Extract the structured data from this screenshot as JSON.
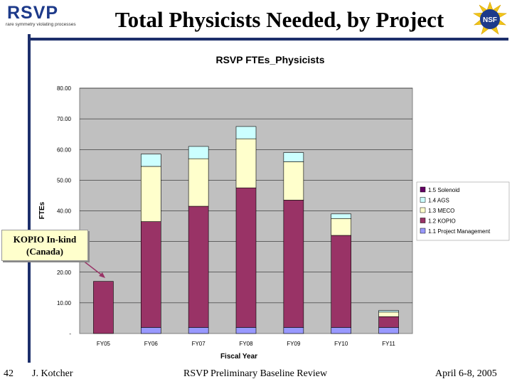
{
  "header": {
    "logo_text": "RSVP",
    "logo_tagline": "rare symmetry violating processes",
    "title": "Total Physicists Needed, by Project",
    "nsf_logo_text": "NSF"
  },
  "callout": {
    "line1": "KOPIO In-kind",
    "line2": "(Canada)"
  },
  "footer": {
    "page_number": "42",
    "author": "J. Kotcher",
    "event": "RSVP Preliminary Baseline Review",
    "date": "April 6-8, 2005"
  },
  "chart_data": {
    "type": "bar",
    "stacked": true,
    "title": "RSVP FTEs_Physicists",
    "xlabel": "Fiscal Year",
    "ylabel": "FTEs",
    "ylim": [
      0,
      80
    ],
    "yticks": [
      "-",
      "10.00",
      "20.00",
      "30.00",
      "40.00",
      "50.00",
      "60.00",
      "70.00",
      "80.00"
    ],
    "grid": true,
    "legend_position": "right",
    "categories": [
      "FY05",
      "FY06",
      "FY07",
      "FY08",
      "FY09",
      "FY10",
      "FY11"
    ],
    "series": [
      {
        "name": "1.1 Project Management",
        "color": "#9999ff",
        "values": [
          0,
          2,
          2,
          2,
          2,
          2,
          2
        ]
      },
      {
        "name": "1.2 KOPIO",
        "color": "#993366",
        "values": [
          17,
          34.5,
          39.5,
          45.5,
          41.5,
          30,
          3.5
        ]
      },
      {
        "name": "1.3 MECO",
        "color": "#ffffcc",
        "values": [
          0,
          18,
          15.5,
          16,
          12.5,
          5.5,
          1.5
        ]
      },
      {
        "name": "1.4 AGS",
        "color": "#ccffff",
        "values": [
          0,
          4,
          4,
          4,
          3,
          1.5,
          0.5
        ]
      },
      {
        "name": "1.5 Solenoid",
        "color": "#660066",
        "values": [
          0,
          0,
          0,
          0,
          0,
          0,
          0
        ]
      }
    ],
    "legend_order": [
      "1.5 Solenoid",
      "1.4 AGS",
      "1.3 MECO",
      "1.2 KOPIO",
      "1.1 Project Management"
    ]
  }
}
